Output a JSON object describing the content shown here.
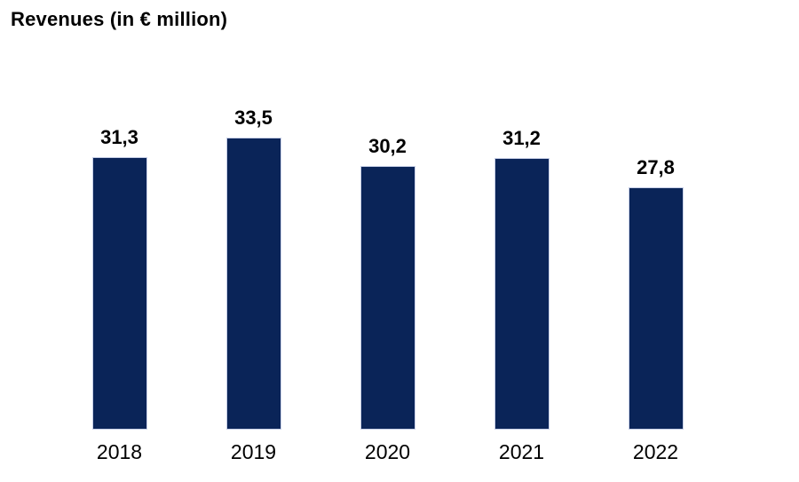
{
  "title": "Revenues (in € million)",
  "chart_data": {
    "type": "bar",
    "title": "Revenues (in € million)",
    "categories": [
      "2018",
      "2019",
      "2020",
      "2021",
      "2022"
    ],
    "values": [
      31.3,
      33.5,
      30.2,
      31.2,
      27.8
    ],
    "value_labels": [
      "31,3",
      "33,5",
      "30,2",
      "31,2",
      "27,8"
    ],
    "xlabel": "",
    "ylabel": "",
    "ylim": [
      0,
      35
    ],
    "grid": false,
    "legend": false,
    "axis_lines": false,
    "bar_color": "#0a2458",
    "bar_border_color": "#c7cfe7",
    "label_color": "#000000",
    "background_color": "#ffffff"
  }
}
